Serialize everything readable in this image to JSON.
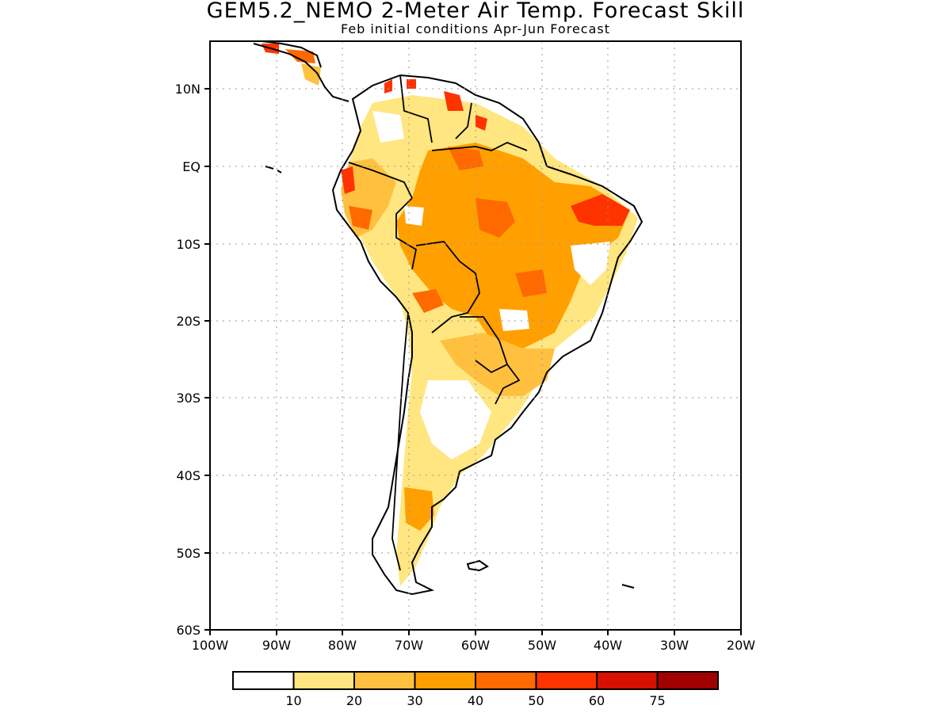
{
  "title": "GEM5.2_NEMO 2-Meter Air Temp. Forecast Skill",
  "subtitle": "Feb initial conditions  Apr-Jun Forecast",
  "lat_labels": [
    "10N",
    "EQ",
    "10S",
    "20S",
    "30S",
    "40S",
    "50S",
    "60S"
  ],
  "lon_labels": [
    "100W",
    "90W",
    "80W",
    "70W",
    "60W",
    "50W",
    "40W",
    "30W",
    "20W"
  ],
  "legend": {
    "colors": [
      "#ffffff",
      "#ffe680",
      "#ffc040",
      "#ffa000",
      "#ff6a00",
      "#ff3300",
      "#d81000",
      "#a00000"
    ],
    "labels": [
      "10",
      "20",
      "30",
      "40",
      "50",
      "60",
      "75"
    ]
  },
  "map": {
    "lon_range": [
      -100,
      -20
    ],
    "lat_range": [
      -60,
      16
    ],
    "grid": "dotted",
    "region": "South America"
  }
}
